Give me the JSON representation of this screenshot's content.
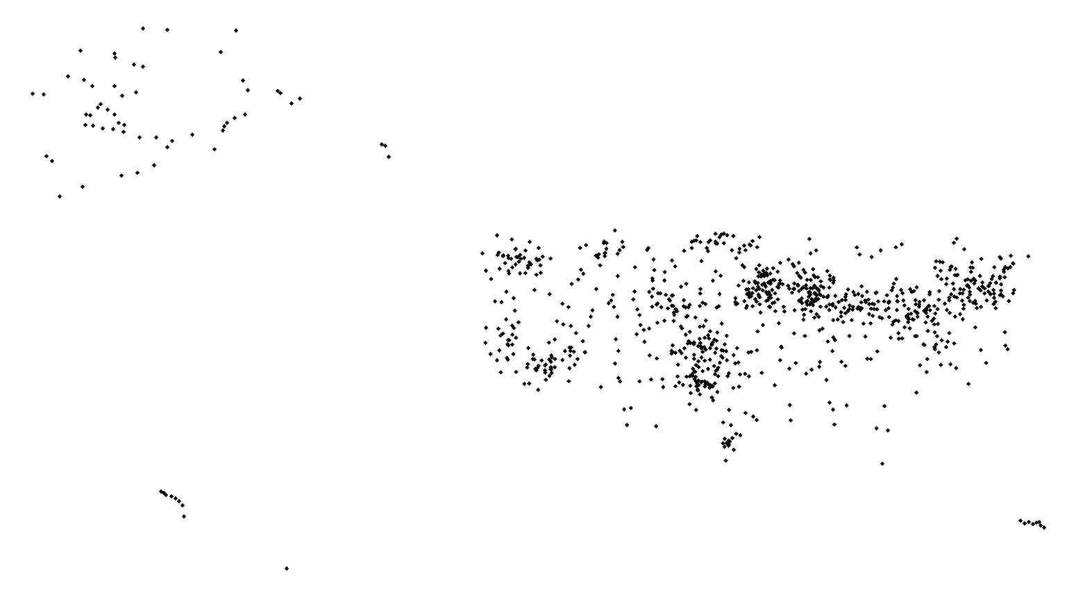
{
  "map": {
    "background_color": "#ffffff",
    "marker_color": "#000000",
    "marker_shape": "diamond",
    "marker_icon": "diamond-marker-icon",
    "labels_visible": false,
    "basemap_visible": false
  }
}
